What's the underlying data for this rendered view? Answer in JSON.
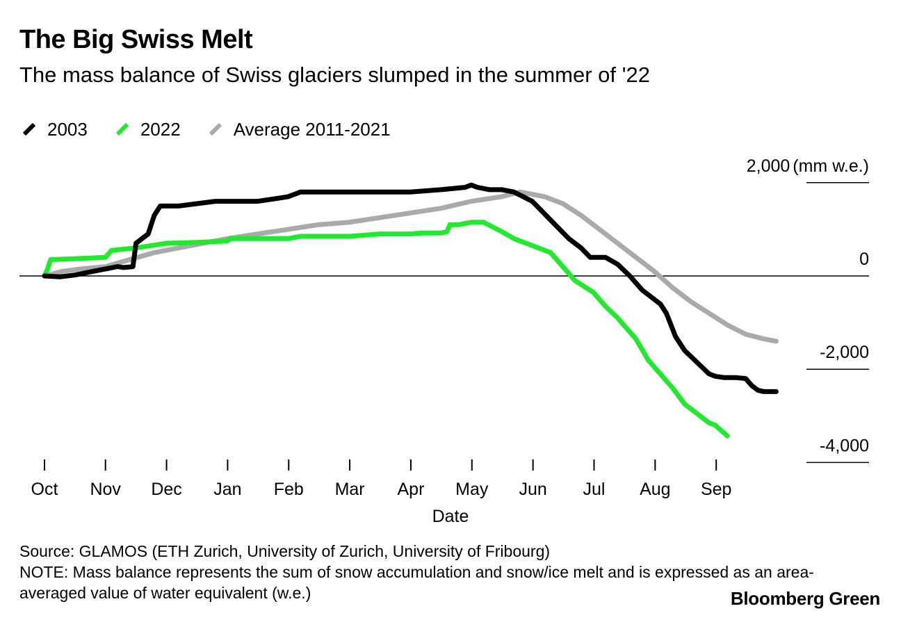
{
  "header": {
    "title": "The Big Swiss Melt",
    "subtitle": "The mass balance of Swiss glaciers slumped in the summer of '22"
  },
  "legend": [
    {
      "label": "2003",
      "color": "#000000"
    },
    {
      "label": "2022",
      "color": "#22e830"
    },
    {
      "label": "Average 2011-2021",
      "color": "#aaaaaa"
    }
  ],
  "footer": {
    "source": "Source: GLAMOS (ETH Zurich, University of Zurich, University of Fribourg)",
    "note": "NOTE: Mass balance represents the sum of snow accumulation and snow/ice melt and is expressed as an area-averaged value of water equivalent (w.e.)",
    "brand": "Bloomberg Green"
  },
  "chart_data": {
    "type": "line",
    "title": "The Big Swiss Melt",
    "subtitle": "The mass balance of Swiss glaciers slumped in the summer of '22",
    "xlabel": "Date",
    "ylabel": "(mm w.e.)",
    "x_ticks": [
      "Oct",
      "Nov",
      "Dec",
      "Jan",
      "Feb",
      "Mar",
      "Apr",
      "May",
      "Jun",
      "Jul",
      "Aug",
      "Sep"
    ],
    "x_unit": "months since Oct 1",
    "xlim": [
      0,
      12
    ],
    "ylim": [
      -4000,
      2000
    ],
    "y_ticks": [
      {
        "value": 2000,
        "label": "2,000"
      },
      {
        "value": 0,
        "label": "0"
      },
      {
        "value": -2000,
        "label": "-2,000"
      },
      {
        "value": -4000,
        "label": "-4,000"
      }
    ],
    "y_unit_label": "(mm w.e.)",
    "zero_line": true,
    "legend_position": "top-left",
    "series": [
      {
        "name": "2003",
        "color": "#000000",
        "points": [
          [
            0,
            0
          ],
          [
            0.25,
            -20
          ],
          [
            0.5,
            20
          ],
          [
            0.8,
            100
          ],
          [
            1.0,
            150
          ],
          [
            1.2,
            200
          ],
          [
            1.3,
            180
          ],
          [
            1.45,
            200
          ],
          [
            1.5,
            700
          ],
          [
            1.6,
            800
          ],
          [
            1.7,
            900
          ],
          [
            1.8,
            1300
          ],
          [
            1.9,
            1500
          ],
          [
            2.2,
            1500
          ],
          [
            2.5,
            1550
          ],
          [
            2.8,
            1600
          ],
          [
            3.0,
            1600
          ],
          [
            3.5,
            1600
          ],
          [
            3.75,
            1650
          ],
          [
            4.0,
            1700
          ],
          [
            4.2,
            1800
          ],
          [
            5.0,
            1800
          ],
          [
            6.0,
            1800
          ],
          [
            6.5,
            1850
          ],
          [
            6.9,
            1900
          ],
          [
            7.0,
            1950
          ],
          [
            7.1,
            1900
          ],
          [
            7.3,
            1850
          ],
          [
            7.5,
            1850
          ],
          [
            7.7,
            1800
          ],
          [
            8.0,
            1600
          ],
          [
            8.3,
            1200
          ],
          [
            8.6,
            800
          ],
          [
            8.8,
            600
          ],
          [
            8.95,
            400
          ],
          [
            9.0,
            400
          ],
          [
            9.2,
            400
          ],
          [
            9.4,
            250
          ],
          [
            9.6,
            0
          ],
          [
            9.8,
            -300
          ],
          [
            10.0,
            -500
          ],
          [
            10.1,
            -600
          ],
          [
            10.2,
            -800
          ],
          [
            10.35,
            -1300
          ],
          [
            10.5,
            -1600
          ],
          [
            10.7,
            -1850
          ],
          [
            10.9,
            -2100
          ],
          [
            11.0,
            -2150
          ],
          [
            11.15,
            -2180
          ],
          [
            11.35,
            -2180
          ],
          [
            11.5,
            -2200
          ],
          [
            11.6,
            -2350
          ],
          [
            11.7,
            -2450
          ],
          [
            11.8,
            -2480
          ],
          [
            12.0,
            -2480
          ]
        ]
      },
      {
        "name": "2022",
        "color": "#22e830",
        "points": [
          [
            0,
            0
          ],
          [
            0.05,
            150
          ],
          [
            0.1,
            350
          ],
          [
            0.5,
            370
          ],
          [
            1.0,
            400
          ],
          [
            1.1,
            550
          ],
          [
            1.5,
            600
          ],
          [
            2.0,
            700
          ],
          [
            2.5,
            720
          ],
          [
            3.0,
            750
          ],
          [
            3.05,
            800
          ],
          [
            3.5,
            800
          ],
          [
            4.0,
            800
          ],
          [
            4.2,
            850
          ],
          [
            4.5,
            850
          ],
          [
            5.0,
            850
          ],
          [
            5.5,
            900
          ],
          [
            6.0,
            900
          ],
          [
            6.2,
            920
          ],
          [
            6.5,
            920
          ],
          [
            6.6,
            950
          ],
          [
            6.65,
            1100
          ],
          [
            6.8,
            1100
          ],
          [
            7.0,
            1150
          ],
          [
            7.2,
            1150
          ],
          [
            7.5,
            950
          ],
          [
            7.7,
            800
          ],
          [
            7.9,
            700
          ],
          [
            8.1,
            600
          ],
          [
            8.3,
            500
          ],
          [
            8.5,
            200
          ],
          [
            8.7,
            -100
          ],
          [
            9.0,
            -350
          ],
          [
            9.2,
            -650
          ],
          [
            9.4,
            -900
          ],
          [
            9.5,
            -1050
          ],
          [
            9.7,
            -1350
          ],
          [
            9.9,
            -1800
          ],
          [
            10.1,
            -2100
          ],
          [
            10.3,
            -2400
          ],
          [
            10.5,
            -2750
          ],
          [
            10.7,
            -2950
          ],
          [
            10.9,
            -3150
          ],
          [
            11.0,
            -3200
          ],
          [
            11.2,
            -3430
          ]
        ]
      },
      {
        "name": "Average 2011-2021",
        "color": "#aaaaaa",
        "points": [
          [
            0,
            0
          ],
          [
            0.3,
            100
          ],
          [
            0.6,
            150
          ],
          [
            1.0,
            200
          ],
          [
            1.4,
            350
          ],
          [
            1.8,
            500
          ],
          [
            2.2,
            600
          ],
          [
            2.6,
            700
          ],
          [
            3.0,
            800
          ],
          [
            3.5,
            900
          ],
          [
            4.0,
            1000
          ],
          [
            4.5,
            1100
          ],
          [
            5.0,
            1150
          ],
          [
            5.5,
            1250
          ],
          [
            6.0,
            1350
          ],
          [
            6.5,
            1450
          ],
          [
            7.0,
            1600
          ],
          [
            7.5,
            1700
          ],
          [
            7.8,
            1800
          ],
          [
            8.2,
            1700
          ],
          [
            8.5,
            1550
          ],
          [
            8.8,
            1300
          ],
          [
            9.1,
            1000
          ],
          [
            9.4,
            700
          ],
          [
            9.7,
            400
          ],
          [
            10.0,
            100
          ],
          [
            10.3,
            -250
          ],
          [
            10.6,
            -550
          ],
          [
            10.9,
            -800
          ],
          [
            11.2,
            -1050
          ],
          [
            11.5,
            -1250
          ],
          [
            11.8,
            -1350
          ],
          [
            12.0,
            -1400
          ]
        ]
      }
    ]
  }
}
